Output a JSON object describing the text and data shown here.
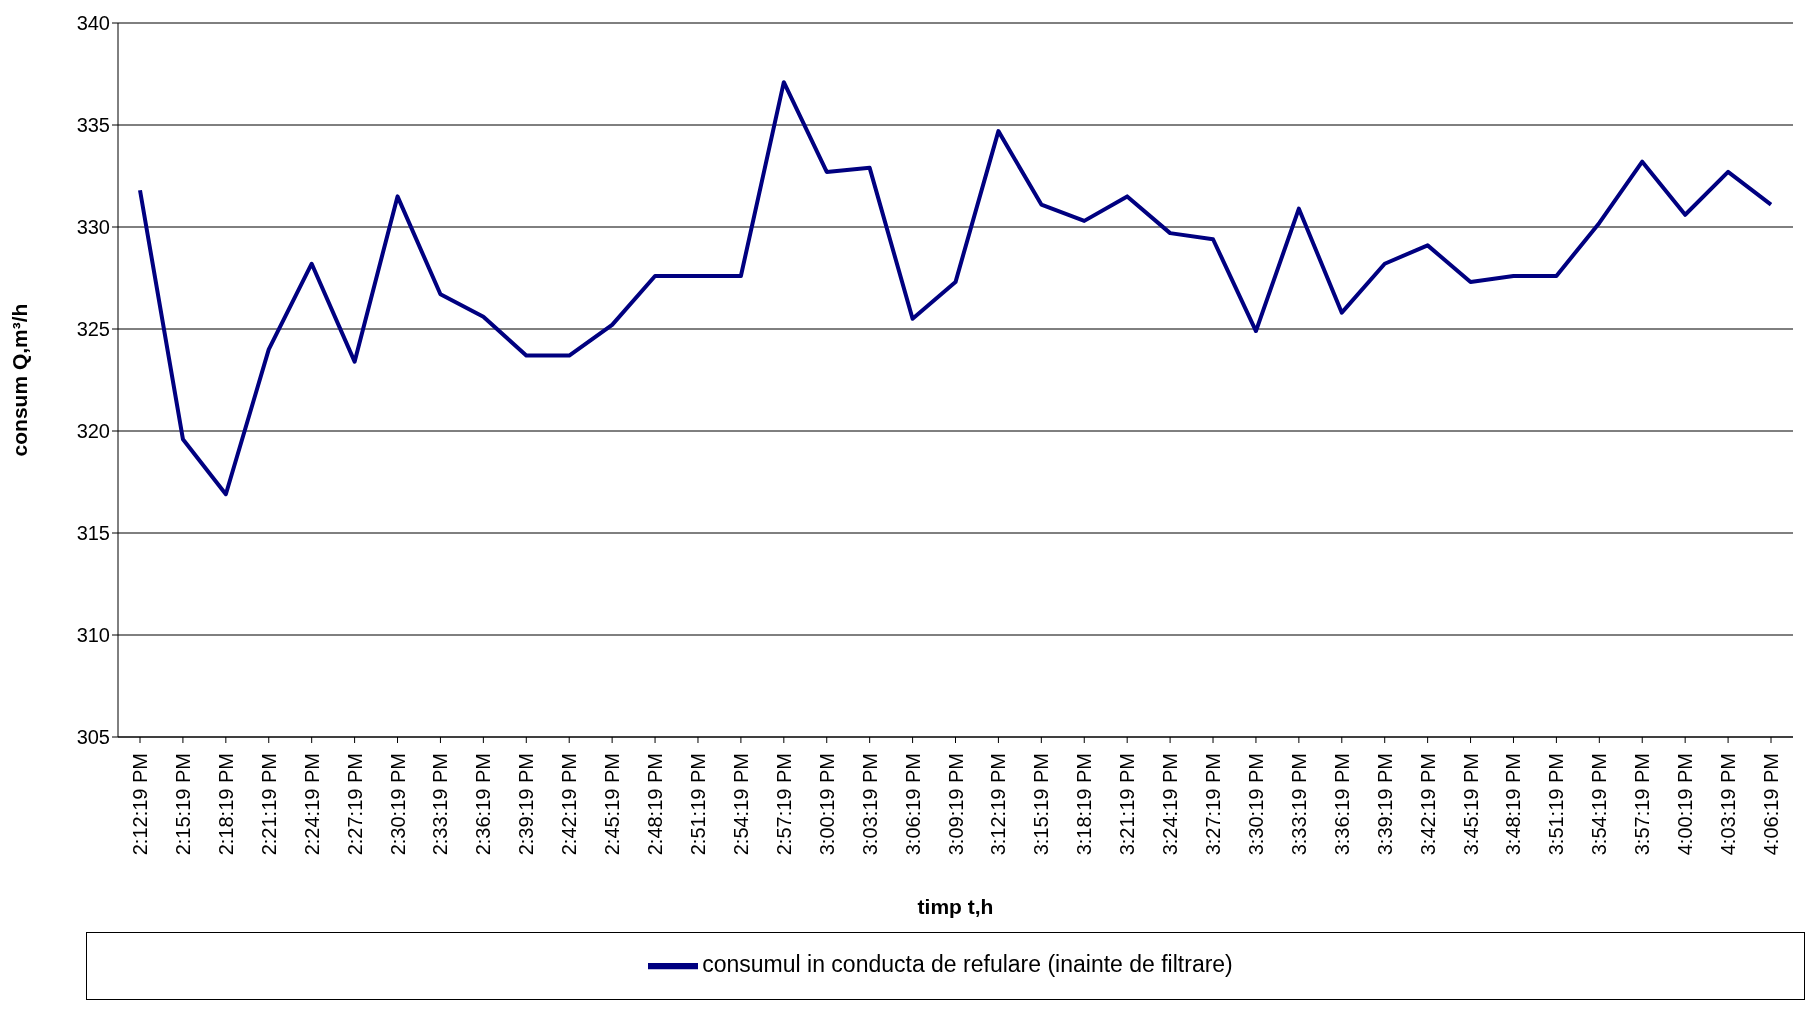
{
  "chart_data": {
    "type": "line",
    "xlabel": "timp t,h",
    "ylabel": "consum Q,m³/h",
    "categories": [
      "2:12:19 PM",
      "2:15:19 PM",
      "2:18:19 PM",
      "2:21:19 PM",
      "2:24:19 PM",
      "2:27:19 PM",
      "2:30:19 PM",
      "2:33:19 PM",
      "2:36:19 PM",
      "2:39:19 PM",
      "2:42:19 PM",
      "2:45:19 PM",
      "2:48:19 PM",
      "2:51:19 PM",
      "2:54:19 PM",
      "2:57:19 PM",
      "3:00:19 PM",
      "3:03:19 PM",
      "3:06:19 PM",
      "3:09:19 PM",
      "3:12:19 PM",
      "3:15:19 PM",
      "3:18:19 PM",
      "3:21:19 PM",
      "3:24:19 PM",
      "3:27:19 PM",
      "3:30:19 PM",
      "3:33:19 PM",
      "3:36:19 PM",
      "3:39:19 PM",
      "3:42:19 PM",
      "3:45:19 PM",
      "3:48:19 PM",
      "3:51:19 PM",
      "3:54:19 PM",
      "3:57:19 PM",
      "4:00:19 PM",
      "4:03:19 PM",
      "4:06:19 PM"
    ],
    "series": [
      {
        "name": "consumul in conducta de refulare (inainte de filtrare)",
        "color": "#000080",
        "values": [
          331.8,
          319.6,
          316.9,
          324.0,
          328.2,
          323.4,
          331.5,
          326.7,
          325.6,
          323.7,
          323.7,
          325.2,
          327.6,
          327.6,
          327.6,
          337.1,
          332.7,
          332.9,
          325.5,
          327.3,
          334.7,
          331.1,
          330.3,
          331.5,
          329.7,
          329.4,
          324.9,
          330.9,
          325.8,
          328.2,
          329.1,
          327.3,
          327.6,
          327.6,
          330.2,
          333.2,
          330.6,
          332.7,
          331.1
        ]
      }
    ],
    "ylim": [
      305,
      340
    ],
    "yticks": [
      305,
      310,
      315,
      320,
      325,
      330,
      335,
      340
    ],
    "grid": "y",
    "legend": "bottom",
    "marker": "none",
    "line_style": "solid"
  }
}
